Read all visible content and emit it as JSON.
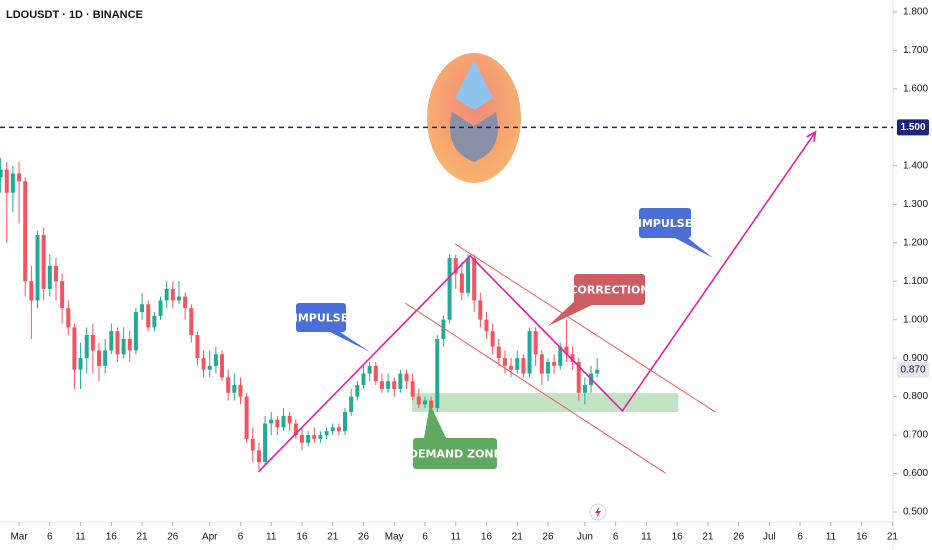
{
  "chart_data": {
    "type": "candlestick",
    "title": "LDOUSDT · 1D · BINANCE",
    "up_color": "#22ab94",
    "down_color": "#f7525f",
    "grid": false,
    "xlim": [
      -3.1,
      142.1
    ],
    "ylim": [
      0.474,
      1.831
    ],
    "xticks": [
      {
        "value": 0,
        "label": "Mar"
      },
      {
        "value": 5,
        "label": "6"
      },
      {
        "value": 10,
        "label": "11"
      },
      {
        "value": 15,
        "label": "16"
      },
      {
        "value": 20,
        "label": "21"
      },
      {
        "value": 25,
        "label": "26"
      },
      {
        "value": 31,
        "label": "Apr"
      },
      {
        "value": 36,
        "label": "6"
      },
      {
        "value": 41,
        "label": "11"
      },
      {
        "value": 46,
        "label": "16"
      },
      {
        "value": 51,
        "label": "21"
      },
      {
        "value": 56,
        "label": "26"
      },
      {
        "value": 61,
        "label": "May"
      },
      {
        "value": 66,
        "label": "6"
      },
      {
        "value": 71,
        "label": "11"
      },
      {
        "value": 76,
        "label": "16"
      },
      {
        "value": 81,
        "label": "21"
      },
      {
        "value": 86,
        "label": "26"
      },
      {
        "value": 92,
        "label": "Jun"
      },
      {
        "value": 97,
        "label": "6"
      },
      {
        "value": 102,
        "label": "11"
      },
      {
        "value": 107,
        "label": "16"
      },
      {
        "value": 112,
        "label": "21"
      },
      {
        "value": 117,
        "label": "26"
      },
      {
        "value": 122,
        "label": "Jul"
      },
      {
        "value": 127,
        "label": "6"
      },
      {
        "value": 132,
        "label": "11"
      },
      {
        "value": 137,
        "label": "16"
      },
      {
        "value": 142,
        "label": "21"
      }
    ],
    "yticks": [
      {
        "value": 1.8,
        "label": "1.800"
      },
      {
        "value": 1.7,
        "label": "1.700"
      },
      {
        "value": 1.6,
        "label": "1.600"
      },
      {
        "value": 1.4,
        "label": "1.400"
      },
      {
        "value": 1.3,
        "label": "1.300"
      },
      {
        "value": 1.2,
        "label": "1.200"
      },
      {
        "value": 1.1,
        "label": "1.100"
      },
      {
        "value": 1.0,
        "label": "1.000"
      },
      {
        "value": 0.9,
        "label": "0.900"
      },
      {
        "value": 0.8,
        "label": "0.800"
      },
      {
        "value": 0.7,
        "label": "0.700"
      },
      {
        "value": 0.6,
        "label": "0.600"
      },
      {
        "value": 0.5,
        "label": "0.500"
      }
    ],
    "level": {
      "value": 1.5,
      "label": "1.500"
    },
    "last_price": {
      "value": 0.87,
      "label": "0.870"
    },
    "x": [
      -3,
      -2,
      -1,
      0,
      1,
      2,
      3,
      4,
      5,
      6,
      7,
      8,
      9,
      10,
      11,
      12,
      13,
      14,
      15,
      16,
      17,
      18,
      19,
      20,
      21,
      22,
      23,
      24,
      25,
      26,
      27,
      28,
      29,
      30,
      31,
      32,
      33,
      34,
      35,
      36,
      37,
      38,
      39,
      40,
      41,
      42,
      43,
      44,
      45,
      46,
      47,
      48,
      49,
      50,
      51,
      52,
      53,
      54,
      55,
      56,
      57,
      58,
      59,
      60,
      61,
      62,
      63,
      64,
      65,
      66,
      67,
      68,
      69,
      70,
      71,
      72,
      73,
      74,
      75,
      76,
      77,
      78,
      79,
      80,
      81,
      82,
      83,
      84,
      85,
      86,
      87,
      88,
      89,
      90,
      91,
      92,
      93,
      94
    ],
    "ohlc": [
      [
        1.37,
        1.42,
        1.33,
        1.39
      ],
      [
        1.39,
        1.41,
        1.2,
        1.33
      ],
      [
        1.33,
        1.4,
        1.28,
        1.38
      ],
      [
        1.38,
        1.41,
        1.25,
        1.36
      ],
      [
        1.36,
        1.37,
        1.06,
        1.1
      ],
      [
        1.1,
        1.14,
        0.95,
        1.05
      ],
      [
        1.05,
        1.23,
        1.03,
        1.22
      ],
      [
        1.22,
        1.24,
        1.05,
        1.08
      ],
      [
        1.08,
        1.17,
        1.06,
        1.14
      ],
      [
        1.14,
        1.16,
        1.05,
        1.1
      ],
      [
        1.1,
        1.12,
        0.99,
        1.03
      ],
      [
        1.03,
        1.05,
        0.96,
        0.98
      ],
      [
        0.98,
        0.99,
        0.82,
        0.87
      ],
      [
        0.87,
        0.94,
        0.82,
        0.9
      ],
      [
        0.9,
        0.98,
        0.86,
        0.96
      ],
      [
        0.96,
        0.99,
        0.86,
        0.92
      ],
      [
        0.92,
        0.94,
        0.84,
        0.88
      ],
      [
        0.88,
        0.95,
        0.86,
        0.92
      ],
      [
        0.92,
        0.99,
        0.91,
        0.97
      ],
      [
        0.97,
        0.98,
        0.89,
        0.91
      ],
      [
        0.91,
        0.98,
        0.9,
        0.95
      ],
      [
        0.95,
        0.97,
        0.89,
        0.92
      ],
      [
        0.92,
        1.03,
        0.91,
        1.02
      ],
      [
        1.02,
        1.07,
        1.0,
        1.04
      ],
      [
        1.04,
        1.05,
        0.97,
        0.98
      ],
      [
        0.98,
        1.02,
        0.97,
        1.01
      ],
      [
        1.01,
        1.06,
        1.0,
        1.05
      ],
      [
        1.05,
        1.1,
        1.03,
        1.08
      ],
      [
        1.08,
        1.1,
        1.03,
        1.05
      ],
      [
        1.05,
        1.1,
        1.04,
        1.06
      ],
      [
        1.06,
        1.07,
        1.0,
        1.03
      ],
      [
        1.03,
        1.04,
        0.94,
        0.96
      ],
      [
        0.96,
        0.97,
        0.88,
        0.9
      ],
      [
        0.9,
        0.92,
        0.85,
        0.87
      ],
      [
        0.87,
        0.92,
        0.85,
        0.88
      ],
      [
        0.88,
        0.93,
        0.86,
        0.91
      ],
      [
        0.91,
        0.92,
        0.84,
        0.85
      ],
      [
        0.85,
        0.87,
        0.79,
        0.81
      ],
      [
        0.81,
        0.86,
        0.79,
        0.83
      ],
      [
        0.83,
        0.85,
        0.78,
        0.8
      ],
      [
        0.8,
        0.81,
        0.68,
        0.69
      ],
      [
        0.69,
        0.72,
        0.63,
        0.66
      ],
      [
        0.66,
        0.68,
        0.61,
        0.63
      ],
      [
        0.63,
        0.75,
        0.62,
        0.73
      ],
      [
        0.73,
        0.76,
        0.7,
        0.74
      ],
      [
        0.74,
        0.75,
        0.7,
        0.72
      ],
      [
        0.72,
        0.77,
        0.71,
        0.75
      ],
      [
        0.75,
        0.76,
        0.71,
        0.73
      ],
      [
        0.73,
        0.74,
        0.69,
        0.7
      ],
      [
        0.7,
        0.72,
        0.66,
        0.68
      ],
      [
        0.68,
        0.71,
        0.67,
        0.7
      ],
      [
        0.7,
        0.72,
        0.68,
        0.69
      ],
      [
        0.69,
        0.71,
        0.68,
        0.7
      ],
      [
        0.7,
        0.72,
        0.69,
        0.71
      ],
      [
        0.71,
        0.73,
        0.7,
        0.72
      ],
      [
        0.72,
        0.73,
        0.7,
        0.71
      ],
      [
        0.71,
        0.77,
        0.7,
        0.76
      ],
      [
        0.76,
        0.82,
        0.75,
        0.8
      ],
      [
        0.8,
        0.84,
        0.79,
        0.83
      ],
      [
        0.83,
        0.88,
        0.82,
        0.86
      ],
      [
        0.86,
        0.89,
        0.84,
        0.88
      ],
      [
        0.88,
        0.89,
        0.83,
        0.84
      ],
      [
        0.84,
        0.86,
        0.81,
        0.82
      ],
      [
        0.82,
        0.86,
        0.81,
        0.84
      ],
      [
        0.84,
        0.85,
        0.8,
        0.82
      ],
      [
        0.82,
        0.87,
        0.81,
        0.86
      ],
      [
        0.86,
        0.87,
        0.82,
        0.84
      ],
      [
        0.84,
        0.86,
        0.79,
        0.8
      ],
      [
        0.8,
        0.82,
        0.77,
        0.78
      ],
      [
        0.78,
        0.8,
        0.77,
        0.79
      ],
      [
        0.79,
        0.8,
        0.76,
        0.77
      ],
      [
        0.77,
        0.96,
        0.76,
        0.95
      ],
      [
        0.95,
        1.01,
        0.93,
        1.0
      ],
      [
        1.0,
        1.17,
        0.99,
        1.16
      ],
      [
        1.16,
        1.17,
        1.08,
        1.12
      ],
      [
        1.12,
        1.15,
        1.05,
        1.07
      ],
      [
        1.07,
        1.17,
        1.06,
        1.16
      ],
      [
        1.16,
        1.17,
        1.02,
        1.05
      ],
      [
        1.05,
        1.07,
        0.98,
        1.0
      ],
      [
        1.0,
        1.02,
        0.95,
        0.97
      ],
      [
        0.97,
        0.99,
        0.91,
        0.93
      ],
      [
        0.93,
        0.95,
        0.88,
        0.9
      ],
      [
        0.9,
        0.92,
        0.86,
        0.88
      ],
      [
        0.88,
        0.9,
        0.85,
        0.87
      ],
      [
        0.87,
        0.92,
        0.86,
        0.9
      ],
      [
        0.9,
        0.91,
        0.85,
        0.86
      ],
      [
        0.86,
        0.98,
        0.85,
        0.97
      ],
      [
        0.97,
        0.98,
        0.88,
        0.91
      ],
      [
        0.91,
        0.92,
        0.83,
        0.86
      ],
      [
        0.86,
        0.9,
        0.84,
        0.89
      ],
      [
        0.89,
        0.91,
        0.86,
        0.88
      ],
      [
        0.88,
        0.94,
        0.87,
        0.93
      ],
      [
        0.93,
        1.0,
        0.89,
        0.91
      ],
      [
        0.91,
        0.93,
        0.87,
        0.89
      ],
      [
        0.89,
        0.9,
        0.79,
        0.81
      ],
      [
        0.81,
        0.85,
        0.78,
        0.83
      ],
      [
        0.83,
        0.88,
        0.81,
        0.86
      ],
      [
        0.86,
        0.9,
        0.85,
        0.87
      ]
    ],
    "drawings": [
      {
        "color": "#e91ea8",
        "points": [
          [
            38.9,
            0.604
          ],
          [
            73.35,
            1.166
          ],
          [
            98.1,
            0.763
          ],
          [
            129.5,
            1.488
          ]
        ]
      },
      {
        "color": "#f05a5a",
        "points": [
          [
            70.9,
            1.197
          ],
          [
            113.2,
            0.76
          ]
        ]
      },
      {
        "color": "#f05a5a",
        "points": [
          [
            62.8,
            1.043
          ],
          [
            105.1,
            0.601
          ]
        ]
      }
    ],
    "zone": {
      "x": [
        63.9,
        107.2
      ],
      "y": [
        0.76,
        0.809
      ]
    },
    "annotations": [
      "IMPULSE",
      "IMPULSE",
      "CORRECTION",
      "DEMAND ZONE"
    ]
  }
}
